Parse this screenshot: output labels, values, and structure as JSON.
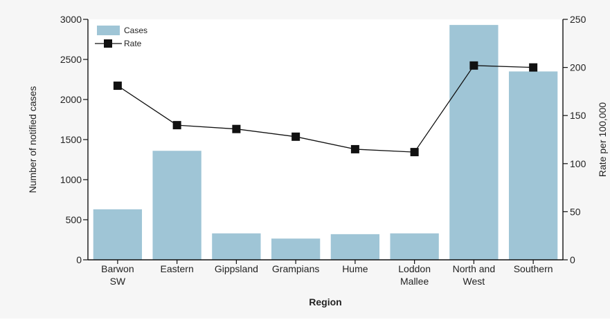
{
  "chart_data": {
    "type": "bar",
    "categories": [
      [
        "Barwon",
        "SW"
      ],
      [
        "Eastern"
      ],
      [
        "Gippsland"
      ],
      [
        "Grampians"
      ],
      [
        "Hume"
      ],
      [
        "Loddon",
        "Mallee"
      ],
      [
        "North and",
        "West"
      ],
      [
        "Southern"
      ]
    ],
    "series": [
      {
        "name": "Cases",
        "type": "bar",
        "axis": "left",
        "color": "#9fc5d6",
        "values": [
          630,
          1360,
          330,
          265,
          320,
          330,
          2930,
          2350
        ]
      },
      {
        "name": "Rate",
        "type": "line",
        "axis": "right",
        "color": "#111111",
        "values": [
          181,
          140,
          136,
          128,
          115,
          112,
          202,
          200
        ]
      }
    ],
    "xlabel": "Region",
    "ylabel": "Number of notified cases",
    "y2label": "Rate per 100,000",
    "ylim": [
      0,
      3000
    ],
    "y2lim": [
      0,
      250
    ],
    "yticks": [
      0,
      500,
      1000,
      1500,
      2000,
      2500,
      3000
    ],
    "y2ticks": [
      0,
      50,
      100,
      150,
      200,
      250
    ],
    "legend_position": "top-left",
    "grid": false
  }
}
